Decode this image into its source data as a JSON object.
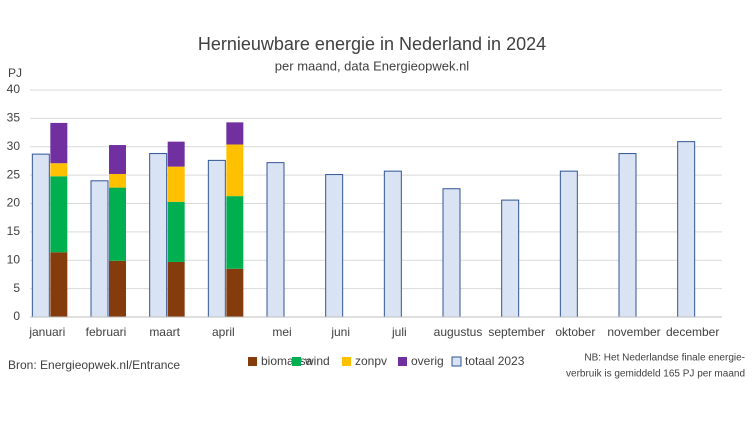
{
  "chart_data": {
    "type": "bar",
    "title": "Hernieuwbare energie in Nederland in 2024",
    "subtitle": "per maand, data Energieopwek.nl",
    "y_label": "PJ",
    "source": "Bron: Energieopwek.nl/Entrance",
    "note": [
      "NB: Het  Nederlandse finale energie-",
      "verbruik is gemiddeld 165 PJ per maand"
    ],
    "categories": [
      "januari",
      "februari",
      "maart",
      "april",
      "mei",
      "juni",
      "juli",
      "augustus",
      "september",
      "oktober",
      "november",
      "december"
    ],
    "series": [
      {
        "name": "biomassa",
        "color": "#843c0c",
        "values": [
          11.4,
          9.9,
          9.7,
          8.5,
          null,
          null,
          null,
          null,
          null,
          null,
          null,
          null
        ]
      },
      {
        "name": "wind",
        "color": "#00b050",
        "values": [
          13.4,
          12.9,
          10.6,
          12.8,
          null,
          null,
          null,
          null,
          null,
          null,
          null,
          null
        ]
      },
      {
        "name": "zonpv",
        "color": "#ffc000",
        "values": [
          2.3,
          2.4,
          6.2,
          9.1,
          null,
          null,
          null,
          null,
          null,
          null,
          null,
          null
        ]
      },
      {
        "name": "overig",
        "color": "#7030a0",
        "values": [
          7.1,
          5.1,
          4.4,
          3.9,
          null,
          null,
          null,
          null,
          null,
          null,
          null,
          null
        ]
      },
      {
        "name": "totaal 2023",
        "color": "#dae3f3",
        "outline": "#2f5597",
        "values": [
          28.7,
          24.0,
          28.8,
          27.6,
          27.2,
          25.1,
          25.7,
          22.6,
          20.6,
          25.7,
          28.8,
          30.9
        ]
      }
    ],
    "ylim": [
      0,
      40
    ],
    "yticks": [
      0,
      5,
      10,
      15,
      20,
      25,
      30,
      35,
      40
    ],
    "grid": true
  }
}
